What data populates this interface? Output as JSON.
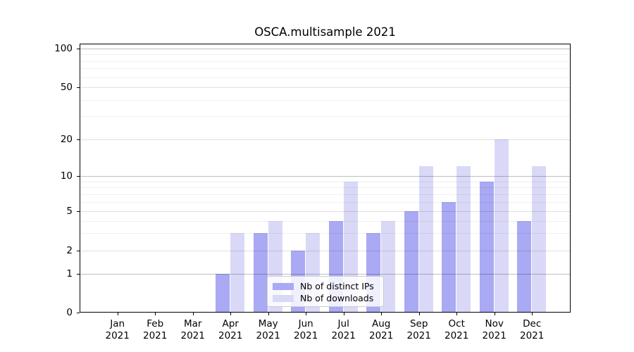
{
  "chart_data": {
    "type": "bar",
    "title": "OSCA.multisample 2021",
    "categories": [
      "Jan",
      "Feb",
      "Mar",
      "Apr",
      "May",
      "Jun",
      "Jul",
      "Aug",
      "Sep",
      "Oct",
      "Nov",
      "Dec"
    ],
    "category_year": "2021",
    "series": [
      {
        "name": "Nb of distinct IPs",
        "color": "#a9a9f4",
        "values": [
          0,
          0,
          0,
          1,
          3,
          2,
          4,
          3,
          5,
          6,
          9,
          4
        ]
      },
      {
        "name": "Nb of downloads",
        "color": "#d9d9f7",
        "values": [
          0,
          0,
          0,
          3,
          4,
          3,
          9,
          4,
          12,
          12,
          20,
          12
        ]
      }
    ],
    "xlabel": "",
    "ylabel": "",
    "yaxis": {
      "scale": "symlog",
      "tick_labels": [
        100,
        50,
        20,
        10,
        5,
        2,
        1,
        0
      ],
      "range": [
        0,
        110
      ],
      "major_gridlines": [
        1,
        10,
        100
      ],
      "medium_gridlines": [
        2,
        5,
        20,
        50
      ],
      "minor_gridlines": [
        3,
        4,
        6,
        7,
        8,
        9,
        30,
        40,
        60,
        70,
        80,
        90
      ]
    },
    "legend": {
      "position": "lower-center",
      "grid_over_bars": true
    }
  }
}
